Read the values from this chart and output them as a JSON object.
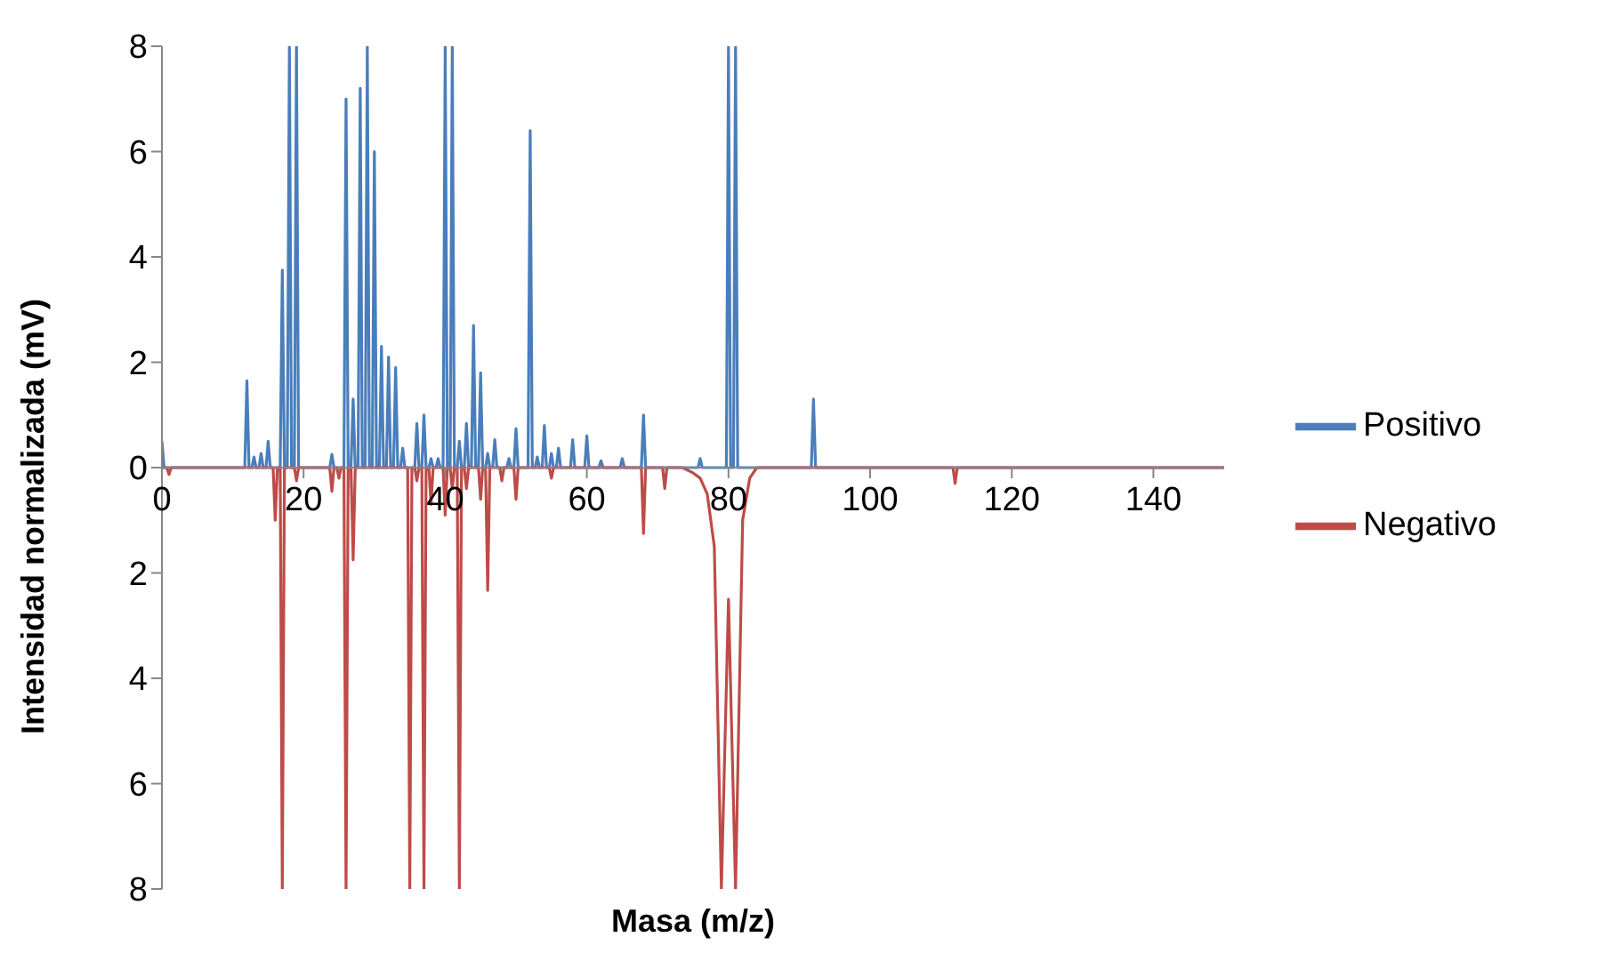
{
  "chart_data": {
    "type": "line",
    "xlabel": "Masa (m/z)",
    "ylabel": "Intensidad normalizada (mV)",
    "xlim": [
      0,
      150
    ],
    "xticks": [
      0,
      20,
      40,
      60,
      80,
      100,
      120,
      140
    ],
    "ylim": [
      -8,
      8
    ],
    "yticks": [
      {
        "value": -8,
        "label": "8"
      },
      {
        "value": -6,
        "label": "6"
      },
      {
        "value": -4,
        "label": "4"
      },
      {
        "value": -2,
        "label": "2"
      },
      0,
      2,
      4,
      6,
      8
    ],
    "grid": false,
    "legend": "right",
    "marker": "none",
    "line_style": "solid",
    "series": [
      {
        "name": "Positivo",
        "color": "#4a7ebb",
        "x": [
          0,
          0.3,
          11.7,
          12,
          12.3,
          12.7,
          13,
          13.3,
          13.7,
          14,
          14.3,
          14.7,
          15,
          15.3,
          16.7,
          17,
          17.3,
          17.7,
          18,
          18.3,
          18.7,
          19,
          19.3,
          23.7,
          24,
          24.3,
          25.7,
          26,
          26.3,
          26.7,
          27,
          27.3,
          27.7,
          28,
          28.3,
          28.7,
          29,
          29.3,
          29.7,
          30,
          30.3,
          30.7,
          31,
          31.3,
          31.7,
          32,
          32.3,
          32.7,
          33,
          33.3,
          33.7,
          34,
          34.3,
          35.7,
          36,
          36.3,
          36.7,
          37,
          37.3,
          37.7,
          38,
          38.3,
          38.7,
          39,
          39.3,
          39.7,
          40,
          40.3,
          40.7,
          41,
          41.3,
          41.7,
          42,
          42.3,
          42.7,
          43,
          43.3,
          43.7,
          44,
          44.3,
          44.7,
          45,
          45.3,
          45.7,
          46,
          46.3,
          46.7,
          47,
          47.3,
          48.7,
          49,
          49.3,
          49.7,
          50,
          50.3,
          51.7,
          52,
          52.3,
          52.7,
          53,
          53.3,
          53.7,
          54,
          54.3,
          54.7,
          55,
          55.3,
          55.7,
          56,
          56.3,
          57.7,
          58,
          58.3,
          59.7,
          60,
          60.3,
          61.7,
          62,
          62.3,
          64.7,
          65,
          65.3,
          67.7,
          68,
          68.3,
          75.7,
          76,
          76.3,
          79.7,
          80,
          80.3,
          80.7,
          81,
          81.3,
          91.7,
          92,
          92.3,
          150
        ],
        "values": [
          0.5,
          0,
          0,
          1.65,
          0,
          0,
          0.2,
          0,
          0,
          0.27,
          0,
          0,
          0.5,
          0,
          0,
          3.75,
          0,
          0,
          8,
          0,
          0,
          8,
          0,
          0,
          0.25,
          0,
          0,
          7,
          0,
          0,
          1.3,
          0,
          0,
          7.2,
          0,
          0,
          8,
          0,
          0,
          6,
          0,
          0,
          2.3,
          0,
          0,
          2.1,
          0,
          0,
          1.9,
          0,
          0,
          0.37,
          0,
          0,
          0.84,
          0,
          0,
          1,
          0,
          0,
          0.17,
          0,
          0,
          0.17,
          0,
          0,
          8,
          0,
          0,
          8,
          0,
          0,
          0.5,
          0,
          0,
          0.84,
          0,
          0,
          2.7,
          0,
          0,
          1.8,
          0,
          0,
          0.27,
          0,
          0,
          0.53,
          0,
          0,
          0.17,
          0,
          0,
          0.74,
          0,
          0,
          6.4,
          0,
          0,
          0.2,
          0,
          0,
          0.8,
          0,
          0,
          0.27,
          0,
          0,
          0.37,
          0,
          0,
          0.53,
          0,
          0,
          0.6,
          0,
          0,
          0.13,
          0,
          0,
          0.17,
          0,
          0,
          1,
          0,
          0,
          0.17,
          0,
          0,
          8,
          0,
          0,
          8,
          0,
          0,
          1.3,
          0,
          0
        ]
      },
      {
        "name": "Negativo",
        "color": "#be4b48",
        "x": [
          0,
          0.7,
          1,
          1.3,
          15.7,
          16,
          16.3,
          16.7,
          17,
          17.3,
          18.7,
          19,
          19.3,
          23.7,
          24,
          24.3,
          24.7,
          25,
          25.3,
          25.7,
          26,
          26.3,
          26.7,
          27,
          27.3,
          34.7,
          35,
          35.3,
          35.7,
          36,
          36.3,
          36.7,
          37,
          37.3,
          37.7,
          38,
          38.3,
          39.7,
          40,
          40.3,
          40.7,
          41,
          41.3,
          41.7,
          42,
          42.3,
          42.7,
          43,
          43.3,
          44.7,
          45,
          45.3,
          45.7,
          46,
          46.3,
          47.7,
          48,
          48.3,
          49.7,
          50,
          50.3,
          54.7,
          55,
          55.3,
          67.7,
          68,
          68.3,
          70.7,
          71,
          71.3,
          73.5,
          75,
          76,
          77,
          78,
          79,
          80,
          81,
          82,
          83,
          84,
          111.7,
          112,
          112.3,
          150
        ],
        "values": [
          0,
          0,
          -0.13,
          0,
          0,
          -1,
          0,
          0,
          -8,
          0,
          0,
          -0.25,
          0,
          0,
          -0.45,
          0,
          0,
          -0.2,
          0,
          0,
          -8,
          0,
          0,
          -1.75,
          0,
          0,
          -8,
          0,
          0,
          -0.25,
          0,
          0,
          -8,
          0,
          0,
          -0.7,
          0,
          0,
          -0.9,
          0,
          0,
          -0.4,
          0,
          0,
          -8,
          0,
          0,
          -0.4,
          0,
          0,
          -0.6,
          0,
          0,
          -2.33,
          0,
          0,
          -0.25,
          0,
          0,
          -0.6,
          0,
          0,
          -0.2,
          0,
          0,
          -1.25,
          0,
          0,
          -0.4,
          0,
          0,
          -0.1,
          -0.2,
          -0.5,
          -1.5,
          -8,
          -2.5,
          -8,
          -1,
          -0.2,
          0,
          0,
          -0.3,
          0,
          0
        ]
      }
    ]
  }
}
